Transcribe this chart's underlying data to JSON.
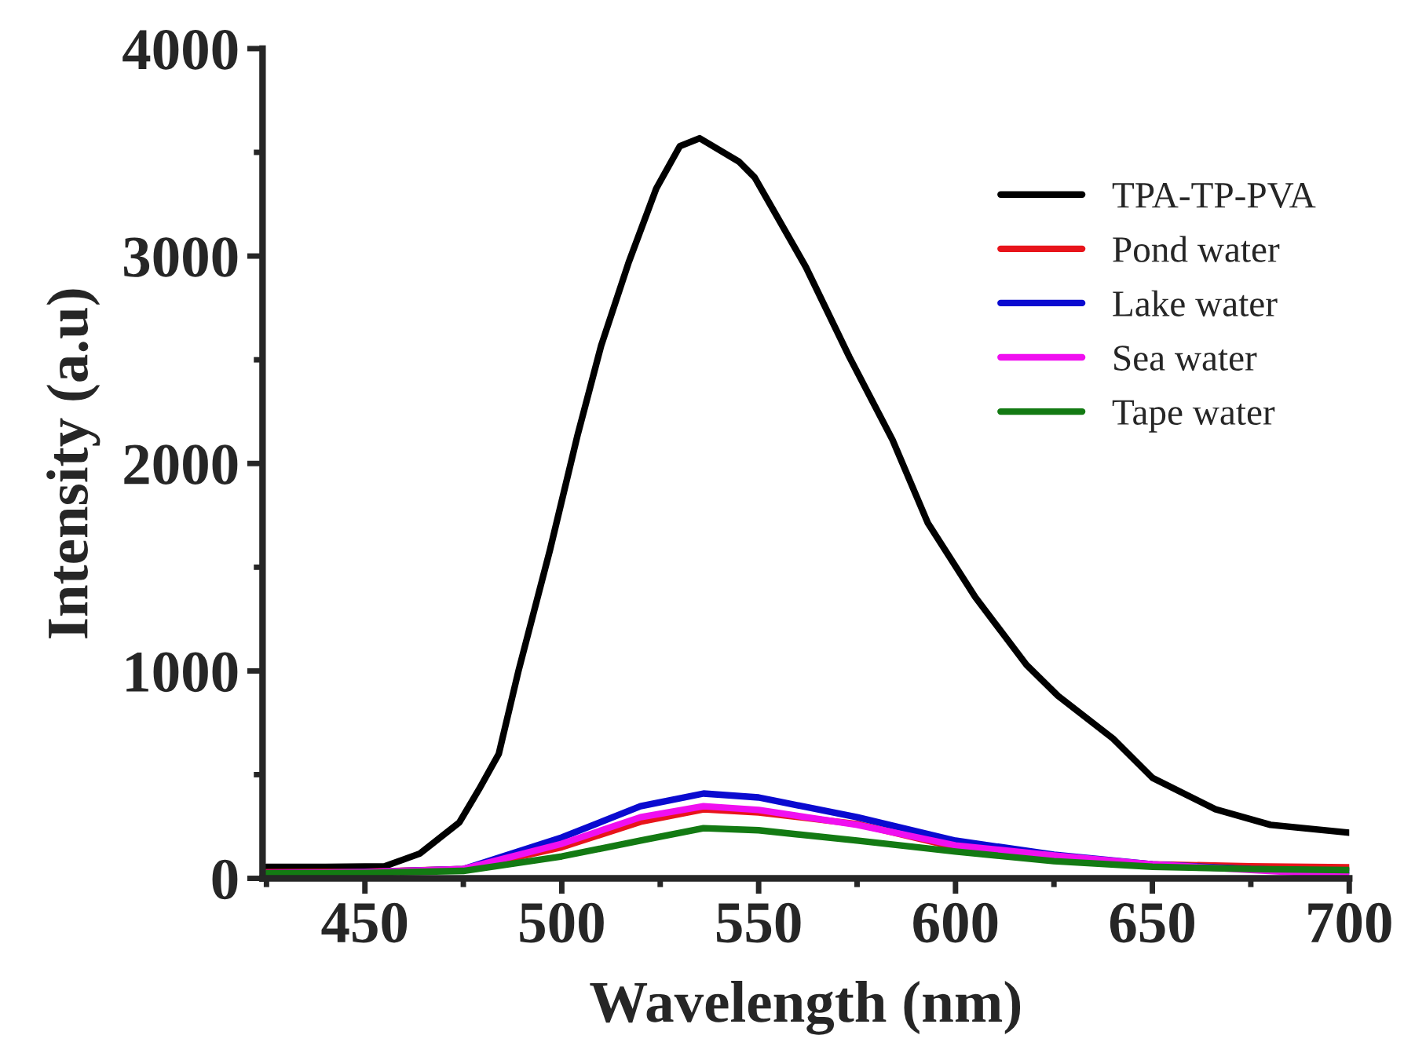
{
  "chart_data": {
    "type": "line",
    "xlabel": "Wavelength (nm)",
    "ylabel": "Intensity (a.u)",
    "xlim": [
      424,
      700
    ],
    "ylim": [
      0,
      4000
    ],
    "xticks": [
      450,
      500,
      550,
      600,
      650,
      700
    ],
    "yticks": [
      0,
      1000,
      2000,
      3000,
      4000
    ],
    "grid": false,
    "legend": "top right",
    "marker": "none",
    "line_style": "solid",
    "series": [
      {
        "name": "TPA-TP-PVA",
        "color": "#000000",
        "x": [
          425,
          440,
          455,
          464,
          474,
          479,
          484,
          489,
          497,
          504,
          510,
          517,
          524,
          530,
          535,
          545,
          549,
          562,
          573,
          584,
          593,
          605,
          618,
          626,
          640,
          650,
          666,
          680,
          700
        ],
        "values": [
          55,
          55,
          58,
          120,
          270,
          430,
          600,
          1000,
          1583,
          2136,
          2568,
          2970,
          3326,
          3530,
          3568,
          3455,
          3379,
          2947,
          2515,
          2114,
          1712,
          1356,
          1030,
          880,
          674,
          485,
          333,
          258,
          220
        ]
      },
      {
        "name": "Pond water",
        "color": "#e8141b",
        "x": [
          425,
          450,
          475,
          500,
          520,
          536,
          550,
          575,
          600,
          625,
          650,
          675,
          700
        ],
        "values": [
          30,
          32,
          45,
          150,
          273,
          333,
          318,
          262,
          150,
          100,
          68,
          58,
          53
        ]
      },
      {
        "name": "Lake water",
        "color": "#0a0ad0",
        "x": [
          425,
          450,
          475,
          500,
          520,
          536,
          550,
          575,
          600,
          625,
          650,
          675,
          700
        ],
        "values": [
          25,
          30,
          45,
          197,
          348,
          409,
          390,
          295,
          182,
          114,
          68,
          45,
          35
        ]
      },
      {
        "name": "Sea water",
        "color": "#f00ff0",
        "x": [
          425,
          450,
          475,
          500,
          520,
          536,
          550,
          575,
          600,
          625,
          650,
          675,
          700
        ],
        "values": [
          25,
          30,
          45,
          167,
          295,
          348,
          330,
          258,
          159,
          110,
          68,
          40,
          15
        ]
      },
      {
        "name": "Tape water",
        "color": "#137a13",
        "x": [
          425,
          450,
          475,
          500,
          520,
          536,
          550,
          575,
          600,
          625,
          650,
          675,
          700
        ],
        "values": [
          24,
          26,
          36,
          106,
          182,
          242,
          232,
          182,
          129,
          83,
          56,
          45,
          40
        ]
      }
    ]
  }
}
